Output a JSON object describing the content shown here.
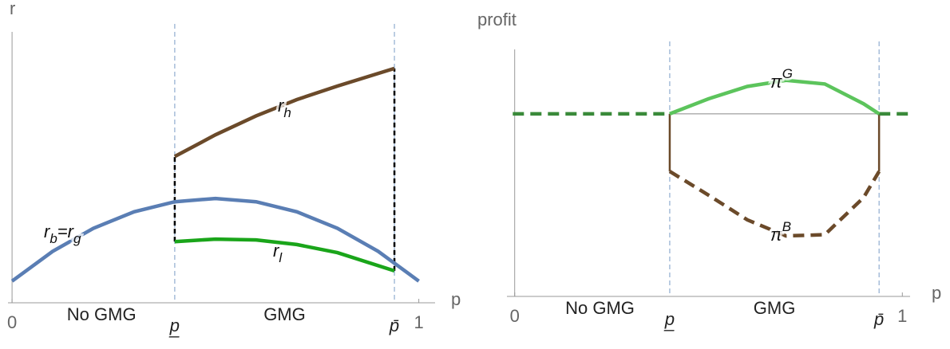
{
  "chart_data": [
    {
      "type": "line",
      "y_label": "r",
      "x_label": "p",
      "xlim": [
        -0.01,
        1.04
      ],
      "ylim": [
        0,
        1
      ],
      "xticks": [
        0,
        1
      ],
      "thresholds": [
        {
          "value": 0.4,
          "label": "p̲"
        },
        {
          "value": 0.94,
          "label": "p̄"
        }
      ],
      "annotations": [
        {
          "text": "No GMG",
          "x": 0.22
        },
        {
          "text": "GMG",
          "x": 0.67
        }
      ],
      "series": [
        {
          "label": [
            {
              "text": "r"
            },
            {
              "sub": "b"
            },
            {
              "text": "=r"
            },
            {
              "sub": "g"
            }
          ],
          "color": "#5a7eb4",
          "x": [
            0,
            0.1,
            0.2,
            0.3,
            0.4,
            0.5,
            0.6,
            0.7,
            0.8,
            0.9,
            1
          ],
          "values": [
            0.08,
            0.19,
            0.275,
            0.336,
            0.373,
            0.385,
            0.373,
            0.336,
            0.275,
            0.19,
            0.08
          ]
        },
        {
          "label": [
            {
              "text": "r"
            },
            {
              "sub": "h"
            }
          ],
          "color": "#6b4a2a",
          "x": [
            0.4,
            0.5,
            0.6,
            0.7,
            0.8,
            0.94
          ],
          "values": [
            0.54,
            0.62,
            0.69,
            0.75,
            0.8,
            0.865
          ]
        },
        {
          "label": [
            {
              "text": "r"
            },
            {
              "sub": "l"
            }
          ],
          "color": "#1aa51a",
          "x": [
            0.4,
            0.5,
            0.6,
            0.7,
            0.8,
            0.94
          ],
          "values": [
            0.226,
            0.235,
            0.232,
            0.215,
            0.185,
            0.118
          ]
        }
      ]
    },
    {
      "type": "line",
      "y_label": "profit",
      "x_label": "p",
      "xlim": [
        -0.02,
        1.02
      ],
      "ylim": [
        0,
        1
      ],
      "xticks": [
        0,
        1
      ],
      "thresholds": [
        {
          "value": 0.4,
          "label": "p̲"
        },
        {
          "value": 0.94,
          "label": "p̄"
        }
      ],
      "annotations": [
        {
          "text": "No GMG",
          "x": 0.22
        },
        {
          "text": "GMG",
          "x": 0.67
        }
      ],
      "series": [
        {
          "color": "#3a8a3a",
          "dashed": true,
          "x": [
            -0.005,
            0.4,
            0.67,
            0.94,
            1.03
          ],
          "values": [
            0.739,
            0.739,
            null,
            0.739,
            0.739
          ]
        },
        {
          "label": [
            {
              "text": "π"
            },
            {
              "sup": "G"
            }
          ],
          "color": "#5cc45c",
          "x": [
            0.4,
            0.5,
            0.6,
            0.7,
            0.8,
            0.9,
            0.94
          ],
          "values": [
            0.739,
            0.8,
            0.85,
            0.875,
            0.86,
            0.78,
            0.739
          ]
        },
        {
          "label": [
            {
              "text": "π"
            },
            {
              "sup": "B"
            }
          ],
          "color": "#6b4a2a",
          "dashed": true,
          "x": [
            0.4,
            0.5,
            0.6,
            0.7,
            0.8,
            0.9,
            0.94
          ],
          "values": [
            0.506,
            0.41,
            0.31,
            0.245,
            0.25,
            0.4,
            0.506
          ]
        }
      ]
    }
  ]
}
